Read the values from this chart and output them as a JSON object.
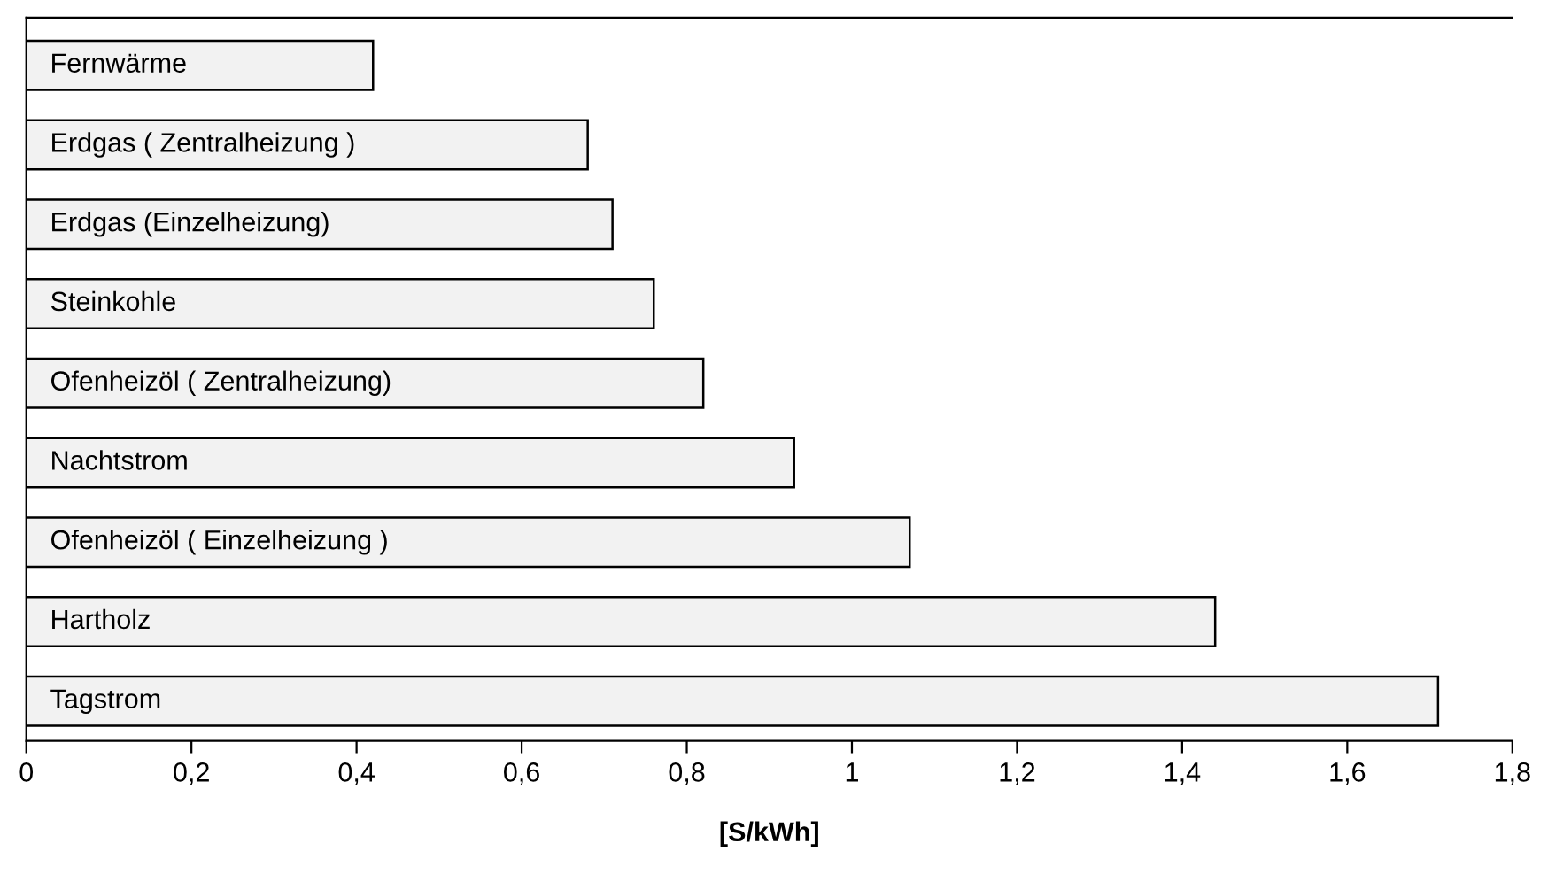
{
  "chart_data": {
    "type": "bar",
    "orientation": "horizontal",
    "xlabel": "[S/kWh]",
    "categories": [
      "Fernwärme",
      "Erdgas ( Zentralheizung )",
      "Erdgas (Einzelheizung)",
      "Steinkohle",
      "Ofenheizöl ( Zentralheizung)",
      "Nachtstrom",
      "Ofenheizöl ( Einzelheizung )",
      "Hartholz",
      "Tagstrom"
    ],
    "values": [
      0.42,
      0.68,
      0.71,
      0.76,
      0.82,
      0.93,
      1.07,
      1.44,
      1.71
    ],
    "color": "#f2f2f2",
    "xlim": [
      0,
      1.8
    ],
    "xticks": [
      {
        "value": 0,
        "label": "0"
      },
      {
        "value": 0.2,
        "label": "0,2"
      },
      {
        "value": 0.4,
        "label": "0,4"
      },
      {
        "value": 0.6,
        "label": "0,6"
      },
      {
        "value": 0.8,
        "label": "0,8"
      },
      {
        "value": 1,
        "label": "1"
      },
      {
        "value": 1.2,
        "label": "1,2"
      },
      {
        "value": 1.4,
        "label": "1,4"
      },
      {
        "value": 1.6,
        "label": "1,6"
      },
      {
        "value": 1.8,
        "label": "1,8"
      }
    ],
    "grid": false,
    "legend": false
  }
}
